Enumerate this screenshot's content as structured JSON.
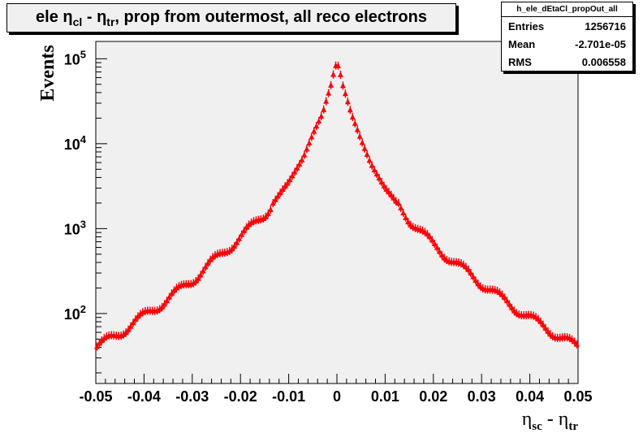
{
  "chart_data": {
    "type": "scatter",
    "title": "ele η_cl - η_tr, prop from outermost, all reco electrons",
    "xlabel": "η_sc - η_tr",
    "ylabel": "Events",
    "xlim": [
      -0.05,
      0.05
    ],
    "ylim": [
      15,
      160000
    ],
    "y_scale": "log",
    "grid": false,
    "x_ticks": [
      "-0.05",
      "-0.04",
      "-0.03",
      "-0.02",
      "-0.01",
      "0",
      "0.01",
      "0.02",
      "0.03",
      "0.04",
      "0.05"
    ],
    "y_ticks": [
      "10^2",
      "10^3",
      "10^4",
      "10^5"
    ],
    "series": [
      {
        "color": "#ff0000",
        "marker": "triangle",
        "x": [
          -0.05,
          -0.045,
          -0.04,
          -0.035,
          -0.03,
          -0.025,
          -0.02,
          -0.015,
          -0.01,
          -0.007,
          -0.005,
          -0.003,
          -0.002,
          -0.001,
          -0.0005,
          0,
          0.0005,
          0.001,
          0.002,
          0.003,
          0.005,
          0.007,
          0.01,
          0.015,
          0.02,
          0.025,
          0.03,
          0.035,
          0.04,
          0.045,
          0.05
        ],
        "y": [
          40,
          60,
          95,
          150,
          250,
          450,
          800,
          1500,
          3500,
          7000,
          13000,
          22000,
          35000,
          55000,
          80000,
          90000,
          80000,
          55000,
          35000,
          22000,
          11000,
          6000,
          3000,
          1300,
          650,
          380,
          230,
          140,
          90,
          60,
          40
        ]
      }
    ]
  },
  "stats": {
    "name": "h_ele_dEtaCl_propOut_all",
    "entries_label": "Entries",
    "entries_value": "1256716",
    "mean_label": "Mean",
    "mean_value": "-2.701e-05",
    "rms_label": "RMS",
    "rms_value": "0.006558"
  },
  "colors": {
    "frame_bg": "#f0f0f0",
    "markers": "#ff0000",
    "under_markers": "#0000cc"
  }
}
